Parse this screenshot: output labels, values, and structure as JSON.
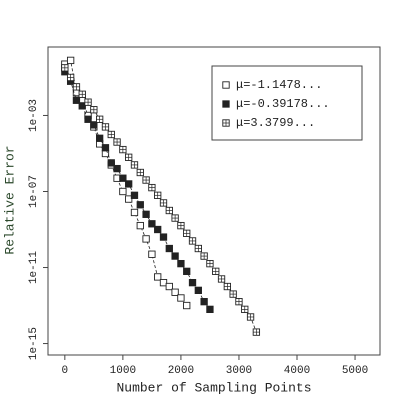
{
  "chart_data": {
    "type": "scatter",
    "xlabel": "Number of Sampling Points",
    "ylabel": "Relative Error",
    "log_y": true,
    "xlim": [
      -290,
      5430
    ],
    "ylim": [
      4,
      2.5e-16
    ],
    "xticks": [
      0,
      1000,
      2000,
      3000,
      4000,
      5000
    ],
    "yticks": [
      {
        "value": 0.001,
        "label": "1e-03"
      },
      {
        "value": 1e-07,
        "label": "1e-07"
      },
      {
        "value": 1e-11,
        "label": "1e-11"
      },
      {
        "value": 1e-15,
        "label": "1e-15"
      }
    ],
    "legend": "topright",
    "connect": "dashed",
    "series": [
      {
        "name": "μ=-1.1478...",
        "marker": "open",
        "color": "#222",
        "x": [
          0,
          100,
          200,
          300,
          400,
          500,
          600,
          700,
          800,
          900,
          1000,
          1100,
          1200,
          1300,
          1400,
          1500,
          1600,
          1700,
          1800,
          1900,
          2000,
          2100
        ],
        "values": [
          0.5,
          0.79,
          0.016,
          0.0063,
          0.001,
          0.00025,
          3.2e-05,
          1e-05,
          2.5e-06,
          5e-07,
          1e-07,
          4e-08,
          7.9e-09,
          1.6e-09,
          3.2e-10,
          5e-11,
          3.2e-12,
          1.6e-12,
          1e-12,
          5e-13,
          2.5e-13,
          1e-13
        ]
      },
      {
        "name": "μ=-0.39178...",
        "marker": "filled",
        "color": "#222",
        "x": [
          0,
          100,
          200,
          300,
          400,
          500,
          600,
          700,
          800,
          900,
          1000,
          1100,
          1200,
          1300,
          1400,
          1500,
          1600,
          1700,
          1800,
          1900,
          2000,
          2100,
          2200,
          2300,
          2400,
          2500
        ],
        "values": [
          0.2,
          0.063,
          0.0063,
          0.0032,
          0.00063,
          0.00032,
          6.3e-05,
          2e-05,
          3.2e-06,
          1.6e-06,
          5e-07,
          2.5e-07,
          6.3e-08,
          2e-08,
          6.3e-09,
          2e-09,
          1e-09,
          4e-10,
          1e-10,
          4e-11,
          1.6e-11,
          6.3e-12,
          1.6e-12,
          6.3e-13,
          1.6e-13,
          6.3e-14
        ]
      },
      {
        "name": "μ=3.3799...",
        "marker": "hatched",
        "color": "#222",
        "x": [
          0,
          100,
          200,
          300,
          400,
          500,
          600,
          700,
          800,
          900,
          1000,
          1100,
          1200,
          1300,
          1400,
          1500,
          1600,
          1700,
          1800,
          1900,
          2000,
          2100,
          2200,
          2300,
          2400,
          2500,
          2600,
          2700,
          2800,
          2900,
          3000,
          3100,
          3200,
          3300
        ],
        "values": [
          0.32,
          0.1,
          0.032,
          0.013,
          0.005,
          0.002,
          0.00063,
          0.00025,
          0.0001,
          4e-05,
          1.6e-05,
          6.3e-06,
          2.5e-06,
          1e-06,
          4e-07,
          1.6e-07,
          6.3e-08,
          2.5e-08,
          1e-08,
          4e-09,
          1.6e-09,
          6.3e-10,
          2.5e-10,
          1e-10,
          4e-11,
          1.6e-11,
          6.3e-12,
          2.5e-12,
          1e-12,
          4e-13,
          1.6e-13,
          6.3e-14,
          2.5e-14,
          4e-15
        ]
      }
    ]
  }
}
